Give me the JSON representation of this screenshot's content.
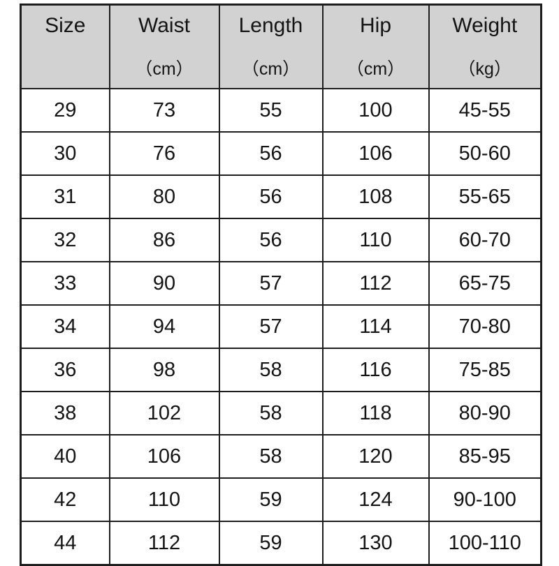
{
  "chart_data": {
    "type": "table",
    "columns": [
      {
        "label": "Size",
        "unit": ""
      },
      {
        "label": "Waist",
        "unit": "（cm）"
      },
      {
        "label": "Length",
        "unit": "（cm）"
      },
      {
        "label": "Hip",
        "unit": "（cm）"
      },
      {
        "label": "Weight",
        "unit": "（kg）"
      }
    ],
    "rows": [
      [
        "29",
        "73",
        "55",
        "100",
        "45-55"
      ],
      [
        "30",
        "76",
        "56",
        "106",
        "50-60"
      ],
      [
        "31",
        "80",
        "56",
        "108",
        "55-65"
      ],
      [
        "32",
        "86",
        "56",
        "110",
        "60-70"
      ],
      [
        "33",
        "90",
        "57",
        "112",
        "65-75"
      ],
      [
        "34",
        "94",
        "57",
        "114",
        "70-80"
      ],
      [
        "36",
        "98",
        "58",
        "116",
        "75-85"
      ],
      [
        "38",
        "102",
        "58",
        "118",
        "80-90"
      ],
      [
        "40",
        "106",
        "58",
        "120",
        "85-95"
      ],
      [
        "42",
        "110",
        "59",
        "124",
        "90-100"
      ],
      [
        "44",
        "112",
        "59",
        "130",
        "100-110"
      ]
    ],
    "layout": {
      "grid": true,
      "header_background": "#d2d2d2",
      "border_color": "#1d1d1d",
      "text_color": "#141414"
    }
  }
}
